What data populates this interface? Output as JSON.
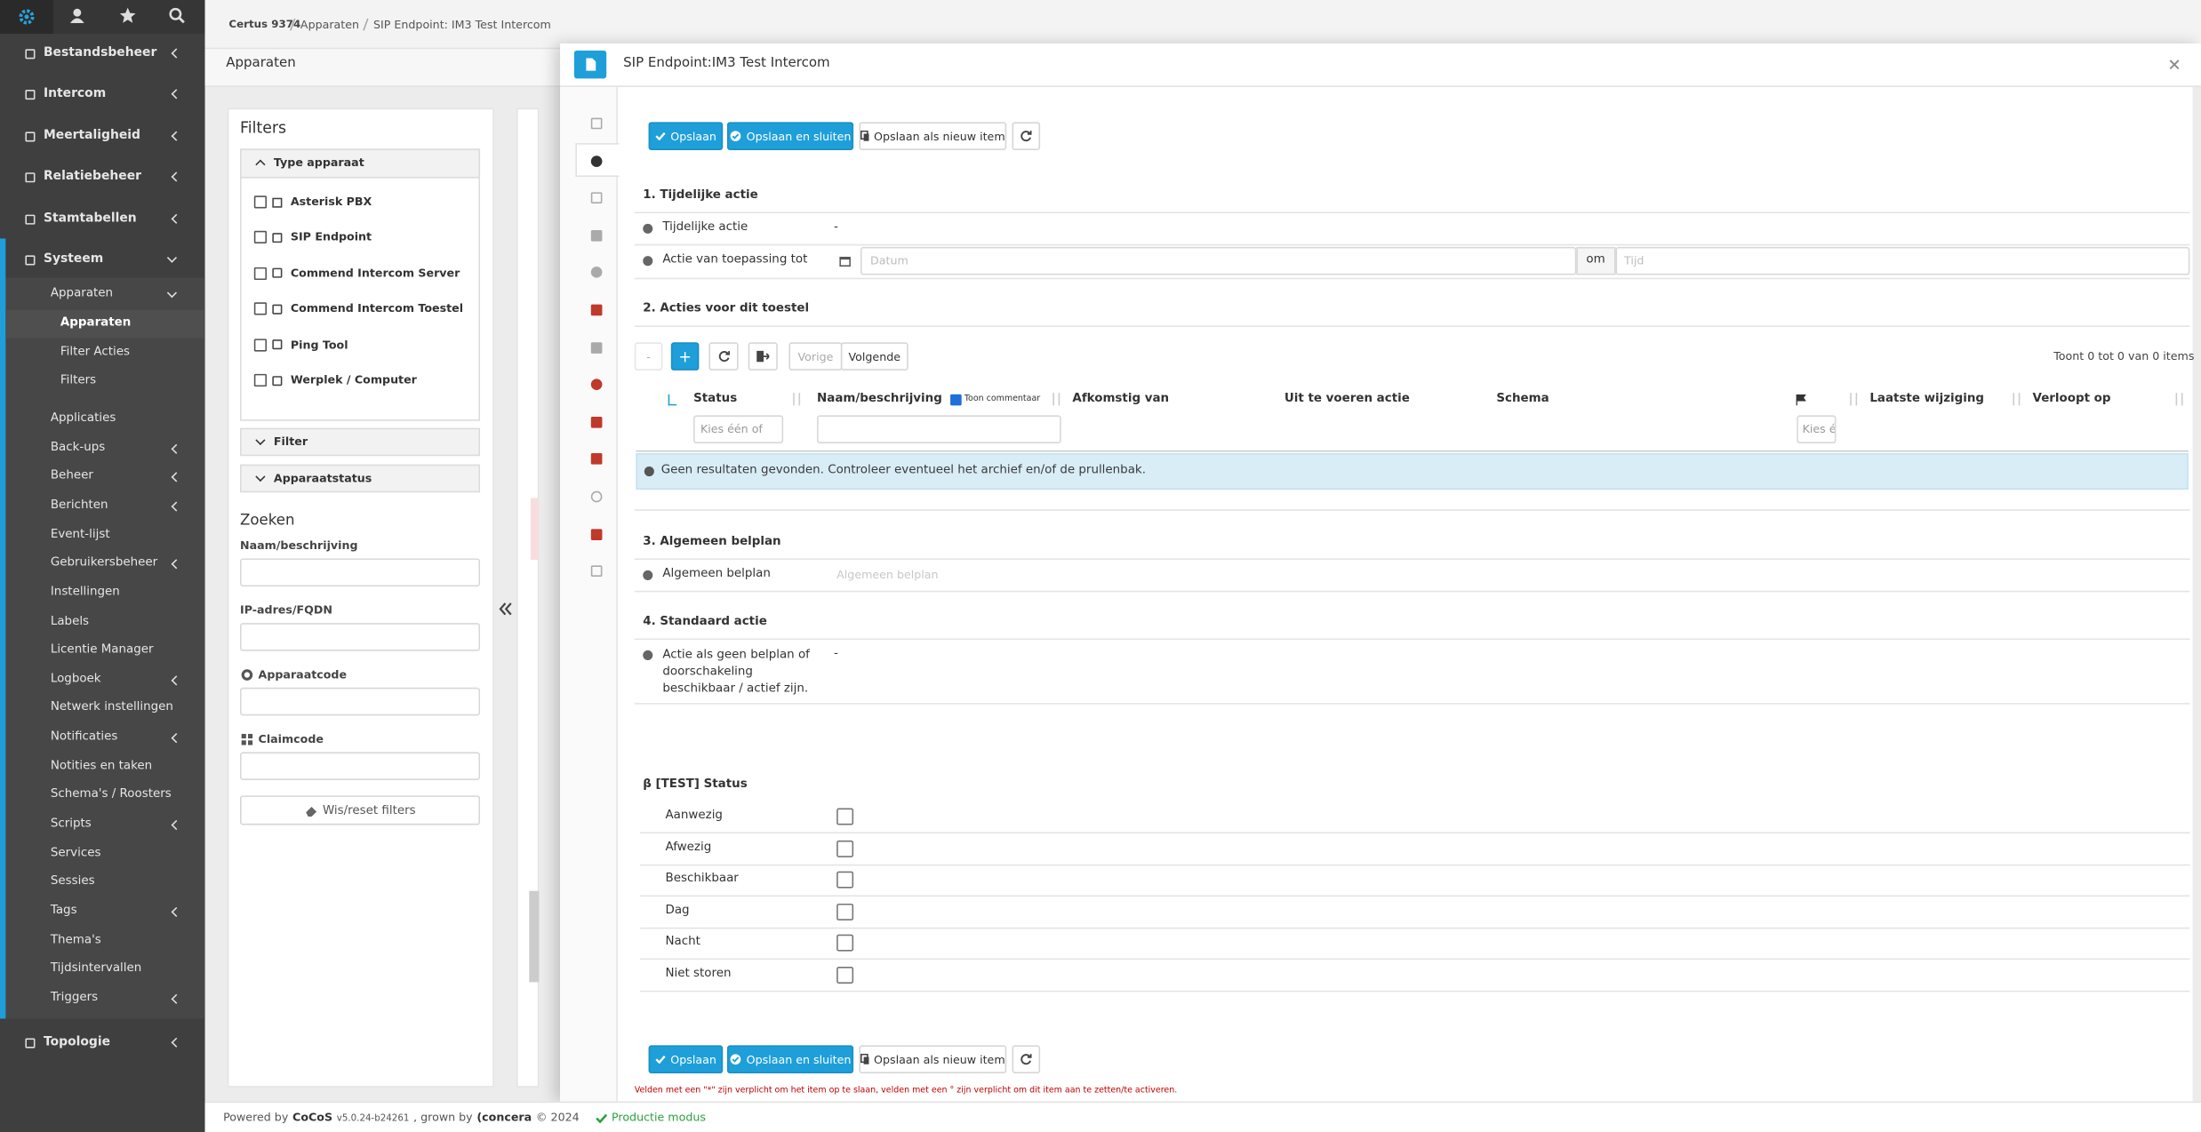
{
  "breadcrumb": [
    "Certus 9374",
    "Apparaten",
    "SIP Endpoint: IM3 Test Intercom"
  ],
  "menu": [
    {
      "label": "Bestandsbeheer",
      "level": 0,
      "expandable": true
    },
    {
      "label": "Intercom",
      "level": 0,
      "expandable": true
    },
    {
      "label": "Meertaligheid",
      "level": 0,
      "expandable": true
    },
    {
      "label": "Relatiebeheer",
      "level": 0,
      "expandable": true
    },
    {
      "label": "Stamtabellen",
      "level": 0,
      "expandable": true
    },
    {
      "label": "Systeem",
      "level": 0,
      "expandable": true,
      "open": true
    },
    {
      "label": "Apparaten",
      "level": 1,
      "expandable": true,
      "open": true
    },
    {
      "label": "Apparaten",
      "level": 2,
      "active": true
    },
    {
      "label": "Filter Acties",
      "level": 2
    },
    {
      "label": "Filters",
      "level": 2
    },
    {
      "label": "Applicaties",
      "level": 1
    },
    {
      "label": "Back-ups",
      "level": 1,
      "expandable": true
    },
    {
      "label": "Beheer",
      "level": 1,
      "expandable": true
    },
    {
      "label": "Berichten",
      "level": 1,
      "expandable": true
    },
    {
      "label": "Event-lijst",
      "level": 1
    },
    {
      "label": "Gebruikersbeheer",
      "level": 1,
      "expandable": true
    },
    {
      "label": "Instellingen",
      "level": 1
    },
    {
      "label": "Labels",
      "level": 1
    },
    {
      "label": "Licentie Manager",
      "level": 1
    },
    {
      "label": "Logboek",
      "level": 1,
      "expandable": true
    },
    {
      "label": "Netwerk instellingen",
      "level": 1
    },
    {
      "label": "Notificaties",
      "level": 1,
      "expandable": true
    },
    {
      "label": "Notities en taken",
      "level": 1
    },
    {
      "label": "Schema's / Roosters",
      "level": 1
    },
    {
      "label": "Scripts",
      "level": 1,
      "expandable": true
    },
    {
      "label": "Services",
      "level": 1
    },
    {
      "label": "Sessies",
      "level": 1
    },
    {
      "label": "Tags",
      "level": 1,
      "expandable": true
    },
    {
      "label": "Thema's",
      "level": 1
    },
    {
      "label": "Tijdsintervallen",
      "level": 1
    },
    {
      "label": "Triggers",
      "level": 1,
      "expandable": true
    },
    {
      "label": "Topologie",
      "level": 0,
      "expandable": true
    }
  ],
  "page_title": "Apparaten",
  "filters": {
    "title": "Filters",
    "type_group": "Type apparaat",
    "types": [
      "Asterisk PBX",
      "SIP Endpoint",
      "Commend Intercom Server",
      "Commend Intercom Toestel",
      "Ping Tool",
      "Werplek / Computer"
    ],
    "groups": [
      "Filter",
      "Apparaatstatus"
    ],
    "search_title": "Zoeken",
    "fields": [
      "Naam/beschrijving",
      "IP-adres/FQDN",
      "Apparaatcode",
      "Claimcode"
    ],
    "reset": "Wis/reset filters"
  },
  "modal": {
    "title": "SIP Endpoint:IM3 Test Intercom",
    "buttons": [
      "Opslaan",
      "Opslaan en sluiten",
      "Opslaan als nieuw item"
    ],
    "section1": {
      "title": "1. Tijdelijke actie",
      "label1": "Tijdelijke actie",
      "value1": "-",
      "label2": "Actie van toepassing tot",
      "date_placeholder": "Datum",
      "at": "om",
      "time_placeholder": "Tijd"
    },
    "section2": {
      "title": "2. Acties voor dit toestel",
      "minus": "-",
      "plus": "+",
      "prev": "Vorige",
      "next": "Volgende",
      "info": "Toont 0 tot 0 van 0 items",
      "columns": [
        "Status",
        "Naam/beschrijving",
        "Afkomstig van",
        "Uit te voeren actie",
        "Schema",
        "Laatste wijziging",
        "Verloopt op"
      ],
      "toggle": "Toon commentaar",
      "status_filter": "Kies één of",
      "flag_filter": "Kies é",
      "empty": "Geen resultaten gevonden. Controleer eventueel het archief en/of de prullenbak."
    },
    "section3": {
      "title": "3. Algemeen belplan",
      "label": "Algemeen belplan",
      "placeholder": "Algemeen belplan"
    },
    "section4": {
      "title": "4. Standaard actie",
      "label": "Actie als geen belplan of doorschakeling beschikbaar / actief zijn.",
      "value": "-"
    },
    "status": {
      "title": "β [TEST] Status",
      "items": [
        "Aanwezig",
        "Afwezig",
        "Beschikbaar",
        "Dag",
        "Nacht",
        "Niet storen"
      ]
    },
    "note": "Velden met een \"*\" zijn verplicht om het item op te slaan, velden met een ° zijn verplicht om dit item aan te zetten/te activeren."
  },
  "footer": {
    "powered": "Powered by",
    "product": "CoCoS",
    "version": "v5.0.24-b24261",
    "grown": ", grown by",
    "company": "(concera",
    "year": "© 2024",
    "mode": "Productie modus"
  }
}
